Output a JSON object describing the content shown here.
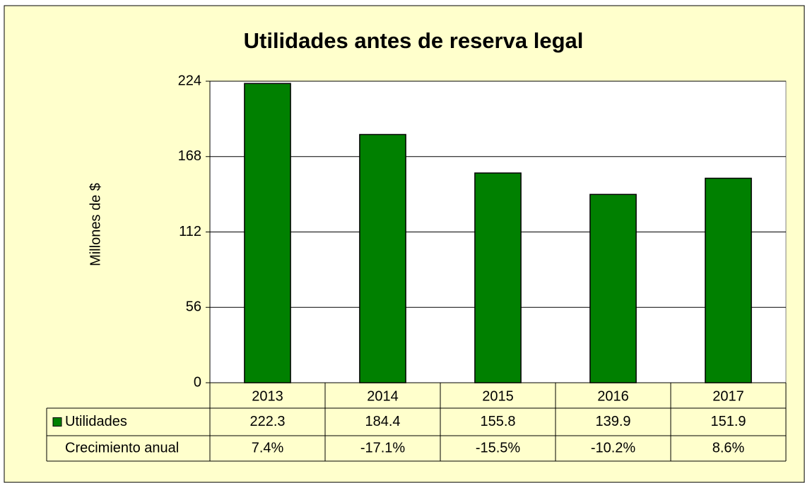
{
  "chart_data": {
    "type": "bar",
    "title": "Utilidades antes de reserva legal",
    "ylabel": "Millones de $",
    "categories": [
      "2013",
      "2014",
      "2015",
      "2016",
      "2017"
    ],
    "series": [
      {
        "name": "Utilidades",
        "color": "#008000",
        "values": [
          222.3,
          184.4,
          155.8,
          139.9,
          151.9
        ]
      }
    ],
    "growth": {
      "name": "Crecimiento anual",
      "values": [
        7.4,
        -17.1,
        -15.5,
        -10.2,
        8.6
      ],
      "value_labels": [
        "7.4%",
        "-17.1%",
        "-15.5%",
        "-10.2%",
        "8.6%"
      ]
    },
    "ylim": [
      0,
      224
    ],
    "yticks": [
      0,
      56,
      112,
      168,
      224
    ],
    "grid": true
  }
}
